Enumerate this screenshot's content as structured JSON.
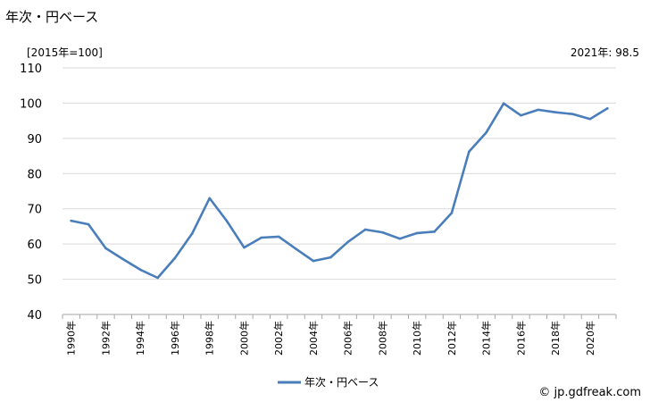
{
  "chart_data": {
    "type": "line",
    "title": "年次・円ベース",
    "unit_label": "[2015年=100]",
    "latest_annotation": "2021年: 98.5",
    "source": "© jp.gdfreak.com",
    "ylim": [
      40,
      110
    ],
    "yticks": [
      40,
      50,
      60,
      70,
      80,
      90,
      100,
      110
    ],
    "grid": "horizontal",
    "legend_position": "bottom-center",
    "x": [
      "1990年",
      "1991年",
      "1992年",
      "1993年",
      "1994年",
      "1995年",
      "1996年",
      "1997年",
      "1998年",
      "1999年",
      "2000年",
      "2001年",
      "2002年",
      "2003年",
      "2004年",
      "2005年",
      "2006年",
      "2007年",
      "2008年",
      "2009年",
      "2010年",
      "2011年",
      "2012年",
      "2013年",
      "2014年",
      "2015年",
      "2016年",
      "2017年",
      "2018年",
      "2019年",
      "2020年",
      "2021年"
    ],
    "xtick_labels": [
      "1990年",
      "1992年",
      "1994年",
      "1996年",
      "1998年",
      "2000年",
      "2002年",
      "2004年",
      "2006年",
      "2008年",
      "2010年",
      "2012年",
      "2014年",
      "2016年",
      "2018年",
      "2020年"
    ],
    "series": [
      {
        "name": "年次・円ベース",
        "color": "#4a7ebb",
        "values": [
          66.6,
          65.6,
          58.8,
          55.7,
          52.7,
          50.4,
          56.0,
          63.0,
          73.0,
          66.5,
          59.0,
          61.8,
          62.1,
          58.6,
          55.2,
          56.2,
          60.6,
          64.1,
          63.3,
          61.5,
          63.1,
          63.5,
          68.8,
          86.2,
          91.7,
          99.9,
          96.5,
          98.1,
          97.4,
          96.9,
          95.5,
          98.5
        ]
      }
    ]
  }
}
